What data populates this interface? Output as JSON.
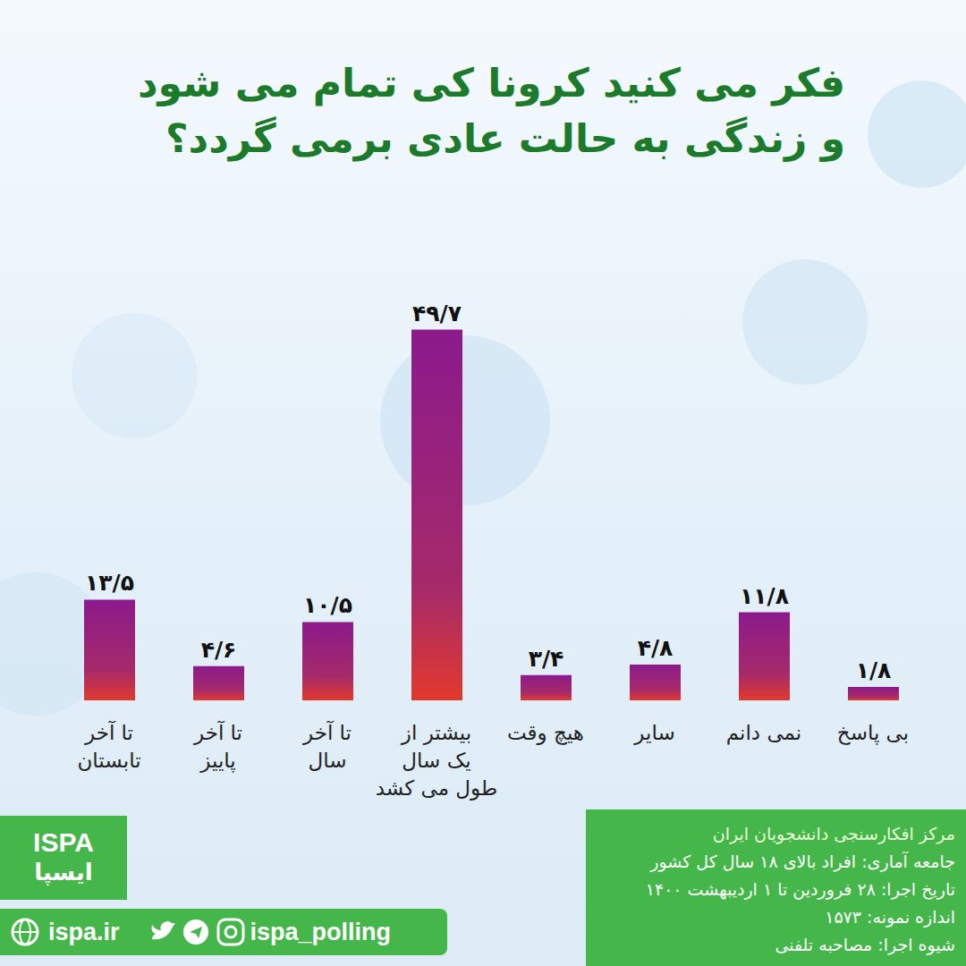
{
  "chart_data": {
    "type": "bar",
    "title": [
      "فکر می کنید کرونا کی تمام می شود",
      "و زندگی به حالت عادی برمی گردد؟"
    ],
    "categories": [
      "تا آخر\nتابستان",
      "تا آخر\nپاییز",
      "تا آخر\nسال",
      "بیشتر از\nیک سال\nطول می کشد",
      "هیچ وقت",
      "سایر",
      "نمی دانم",
      "بی پاسخ"
    ],
    "values": [
      13.5,
      4.6,
      10.5,
      49.7,
      3.4,
      4.8,
      11.8,
      1.8
    ],
    "value_labels": [
      "۱۳/۵",
      "۴/۶",
      "۱۰/۵",
      "۴۹/۷",
      "۳/۴",
      "۴/۸",
      "۱۱/۸",
      "۱/۸"
    ],
    "color": "#8b1a8c",
    "ylim": [
      0,
      50
    ],
    "grid": false,
    "data_labels": true,
    "tick_labels": "x",
    "annotations": {
      "source": [
        "مرکز افکارسنجی دانشجویان ایران",
        "جامعه آماری: افراد بالای ۱۸ سال کل کشور",
        "تاریخ اجرا: ۲۸ فروردین تا ۱ اردیبهشت ۱۴۰۰",
        "اندازه نمونه: ۱۵۷۳",
        "شیوه اجرا: مصاحبه تلفنی"
      ],
      "logo": [
        "ISPA",
        "ایسپا"
      ],
      "links": [
        "ispa.ir",
        "ispa_polling"
      ]
    }
  }
}
